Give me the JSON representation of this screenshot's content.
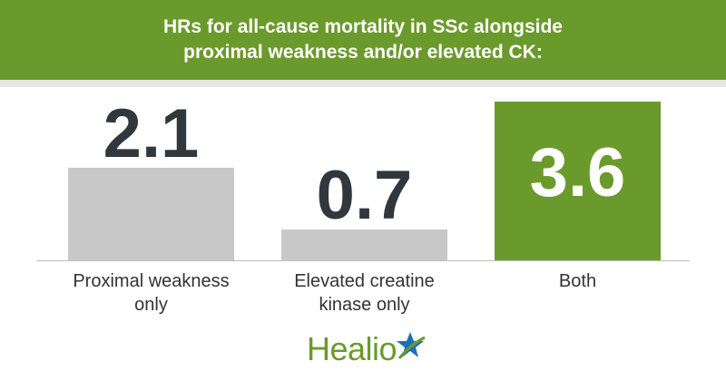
{
  "chart_data": {
    "type": "bar",
    "title": "HRs for all-cause mortality in SSc alongside proximal weakness and/or elevated CK:",
    "categories": [
      "Proximal weakness only",
      "Elevated creatine kinase only",
      "Both"
    ],
    "values": [
      2.1,
      0.7,
      3.6
    ],
    "colors": [
      "#c8c8c8",
      "#c8c8c8",
      "#6b9a2c"
    ]
  },
  "brand": "Healio"
}
